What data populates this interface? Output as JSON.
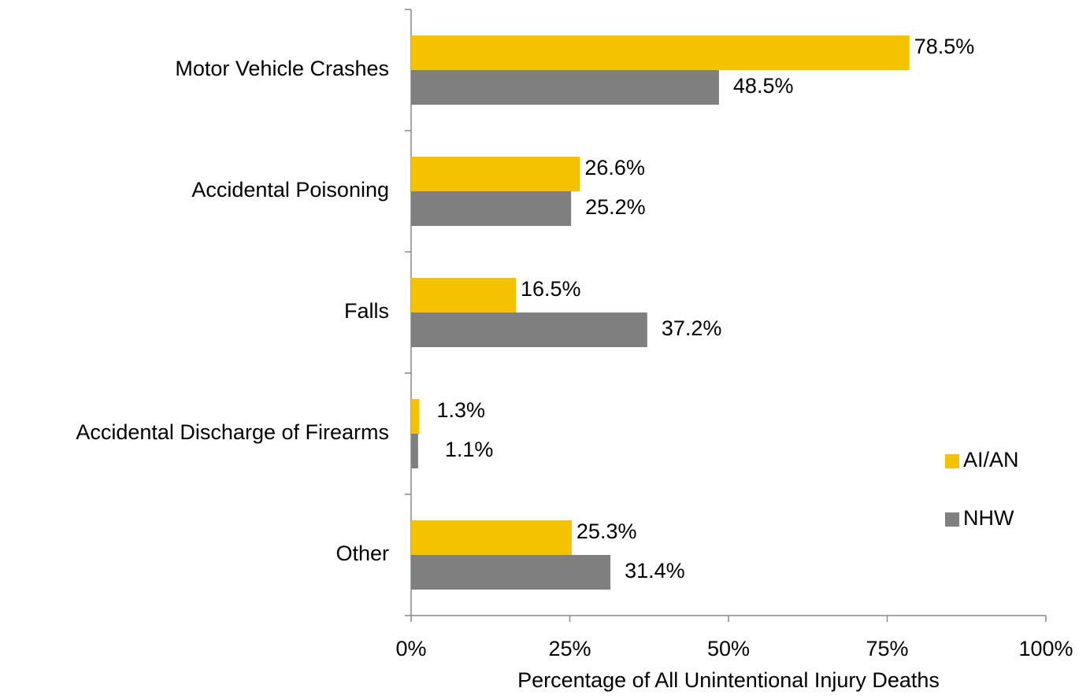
{
  "chart_data": {
    "type": "hbar",
    "xlabel": "Percentage of All Unintentional Injury Deaths",
    "categories": [
      "Motor Vehicle Crashes",
      "Accidental Poisoning",
      "Falls",
      "Accidental Discharge of Firearms",
      "Other"
    ],
    "series": [
      {
        "name": "AI/AN",
        "color": "#f5c200",
        "values": [
          78.5,
          26.6,
          16.5,
          1.3,
          25.3
        ],
        "value_labels": [
          "78.5%",
          "26.6%",
          "16.5%",
          "1.3%",
          "25.3%"
        ]
      },
      {
        "name": "NHW",
        "color": "#7f7f7f",
        "values": [
          48.5,
          25.2,
          37.2,
          1.1,
          31.4
        ],
        "value_labels": [
          "48.5%",
          "25.2%",
          "37.2%",
          "1.1%",
          "31.4%"
        ]
      }
    ],
    "xlim": [
      0,
      100
    ],
    "xticks": [
      {
        "value": 0,
        "label": "0%"
      },
      {
        "value": 25,
        "label": "25%"
      },
      {
        "value": 50,
        "label": "50%"
      },
      {
        "value": 75,
        "label": "75%"
      },
      {
        "value": 100,
        "label": "100%"
      }
    ],
    "legend": "lower right"
  }
}
